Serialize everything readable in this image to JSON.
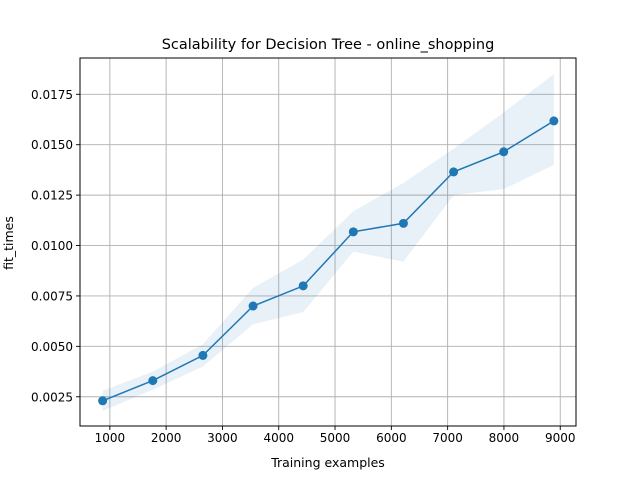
{
  "chart_data": {
    "type": "line",
    "title": "Scalability for Decision Tree - online_shopping",
    "xlabel": "Training examples",
    "ylabel": "fit_times",
    "xlim": [
      470,
      9280
    ],
    "ylim": [
      0.00105,
      0.0193
    ],
    "xticks": [
      1000,
      2000,
      3000,
      4000,
      5000,
      6000,
      7000,
      8000,
      9000
    ],
    "xtick_labels": [
      "1000",
      "2000",
      "3000",
      "4000",
      "5000",
      "6000",
      "7000",
      "8000",
      "9000"
    ],
    "yticks": [
      0.0025,
      0.005,
      0.0075,
      0.01,
      0.0125,
      0.015,
      0.0175
    ],
    "ytick_labels": [
      "0.0025",
      "0.0050",
      "0.0075",
      "0.0100",
      "0.0125",
      "0.0150",
      "0.0175"
    ],
    "grid": true,
    "series": [
      {
        "color": "#1f77b4",
        "x": [
          872,
          1763,
          2653,
          3544,
          4434,
          5325,
          6215,
          7106,
          7996,
          8887
        ],
        "y": [
          0.0023,
          0.0033,
          0.00455,
          0.007,
          0.008,
          0.01068,
          0.0111,
          0.01365,
          0.01465,
          0.01618
        ],
        "band_upper": [
          0.0028,
          0.00375,
          0.0051,
          0.0079,
          0.0093,
          0.0117,
          0.0131,
          0.0148,
          0.0166,
          0.0185
        ],
        "band_lower": [
          0.0018,
          0.00285,
          0.004,
          0.0061,
          0.0067,
          0.0097,
          0.0092,
          0.0125,
          0.0128,
          0.014
        ]
      }
    ]
  }
}
